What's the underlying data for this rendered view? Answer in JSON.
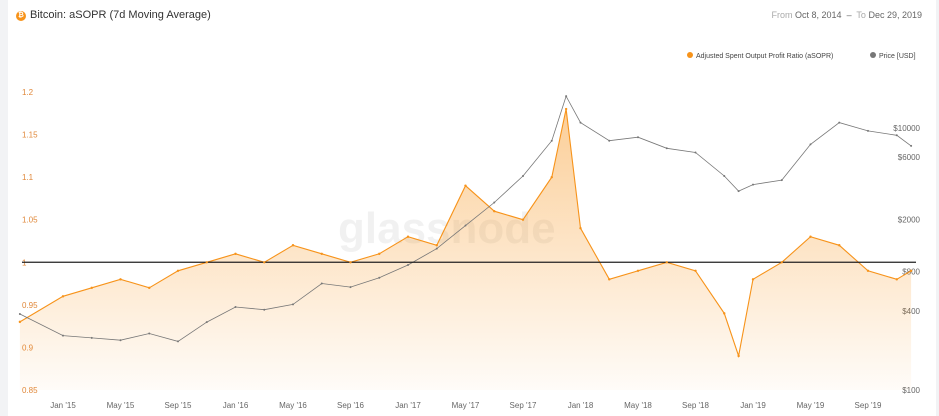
{
  "header": {
    "title": "Bitcoin: aSOPR (7d Moving Average)",
    "from_label": "From",
    "from_date": "Oct 8, 2014",
    "to_label": "To",
    "to_date": "Dec 29, 2019"
  },
  "chart_data": {
    "type": "line",
    "title": "Bitcoin: aSOPR (7d Moving Average)",
    "watermark": "glassnode",
    "legend_position": "top-right",
    "legend": [
      {
        "name": "Adjusted Spent Output Profit Ratio (aSOPR)",
        "color": "#f7931a"
      },
      {
        "name": "Price [USD]",
        "color": "#777777"
      }
    ],
    "reference_line": 1,
    "x_ticks": [
      "Jan '15",
      "May '15",
      "Sep '15",
      "Jan '16",
      "May '16",
      "Sep '16",
      "Jan '17",
      "May '17",
      "Sep '17",
      "Jan '18",
      "May '18",
      "Sep '18",
      "Jan '19",
      "May '19",
      "Sep '19"
    ],
    "y_left": {
      "ticks": [
        "1.2",
        "1.15",
        "1.1",
        "1.05",
        "1",
        "0.95",
        "0.9",
        "0.85"
      ],
      "range": [
        0.85,
        1.2
      ],
      "color": "#e0883a"
    },
    "y_right": {
      "ticks": [
        "$10000",
        "$6000",
        "$2000",
        "$800",
        "$400",
        "$100"
      ],
      "log_scale": true
    },
    "x": [
      "Oct '14",
      "Jan '15",
      "Mar '15",
      "May '15",
      "Jul '15",
      "Sep '15",
      "Nov '15",
      "Jan '16",
      "Mar '16",
      "May '16",
      "Jul '16",
      "Sep '16",
      "Nov '16",
      "Jan '17",
      "Mar '17",
      "May '17",
      "Jul '17",
      "Sep '17",
      "Nov '17",
      "Dec '17",
      "Jan '18",
      "Mar '18",
      "May '18",
      "Jul '18",
      "Sep '18",
      "Nov '18",
      "Dec '18",
      "Jan '19",
      "Mar '19",
      "May '19",
      "Jul '19",
      "Sep '19",
      "Nov '19",
      "Dec '19"
    ],
    "series": [
      {
        "name": "Adjusted Spent Output Profit Ratio (aSOPR)",
        "values": [
          0.93,
          0.96,
          0.97,
          0.98,
          0.97,
          0.99,
          1.0,
          1.01,
          1.0,
          1.02,
          1.01,
          1.0,
          1.01,
          1.03,
          1.02,
          1.09,
          1.06,
          1.05,
          1.1,
          1.18,
          1.04,
          0.98,
          0.99,
          1.0,
          0.99,
          0.94,
          0.89,
          0.98,
          1.0,
          1.03,
          1.02,
          0.99,
          0.98,
          0.99
        ]
      },
      {
        "name": "Price [USD]",
        "values": [
          380,
          260,
          250,
          240,
          270,
          235,
          330,
          430,
          410,
          450,
          650,
          610,
          720,
          900,
          1200,
          1800,
          2700,
          4300,
          8000,
          17500,
          11000,
          8000,
          8500,
          7000,
          6500,
          4300,
          3300,
          3700,
          4000,
          7500,
          11000,
          9500,
          8800,
          7300
        ]
      }
    ]
  }
}
